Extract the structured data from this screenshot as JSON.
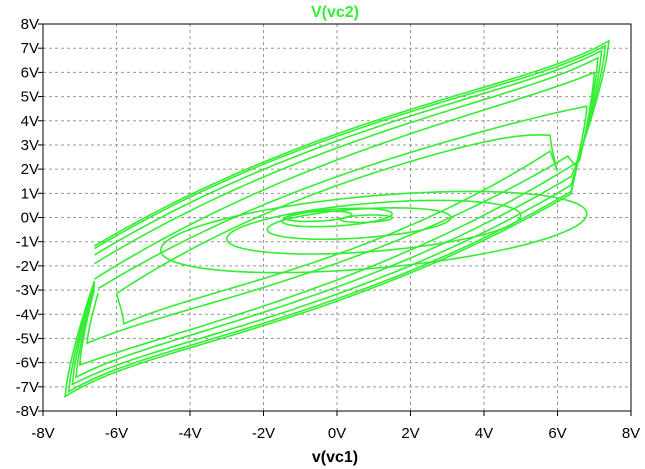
{
  "chart_data": {
    "type": "line",
    "title": "V(vc2)",
    "xlabel": "v(vc1)",
    "ylabel": "",
    "xlim": [
      -8,
      8
    ],
    "ylim": [
      -8,
      8
    ],
    "x_ticks": [
      "-8V",
      "-6V",
      "-4V",
      "-2V",
      "0V",
      "2V",
      "4V",
      "6V",
      "8V"
    ],
    "y_ticks": [
      "8V",
      "7V",
      "6V",
      "5V",
      "4V",
      "3V",
      "2V",
      "1V",
      "0V",
      "-1V",
      "-2V",
      "-3V",
      "-4V",
      "-5V",
      "-6V",
      "-7V",
      "-8V"
    ],
    "grid": true,
    "series": [
      {
        "color": "#33ee33",
        "loops": [
          {
            "amp": 7.4,
            "upper_peak": 7.3,
            "lower_peak": -7.4,
            "knee": 6.6,
            "upper_offset": 3.8,
            "lower_offset": -3.8,
            "slope": 0.4
          },
          {
            "amp": 7.3,
            "upper_peak": 7.1,
            "lower_peak": -7.2,
            "knee": 6.6,
            "upper_offset": 3.7,
            "lower_offset": -3.7,
            "slope": 0.4
          },
          {
            "amp": 7.2,
            "upper_peak": 6.9,
            "lower_peak": -6.9,
            "knee": 6.6,
            "upper_offset": 3.5,
            "lower_offset": -3.5,
            "slope": 0.41
          },
          {
            "amp": 7.1,
            "upper_peak": 6.6,
            "lower_peak": -6.6,
            "knee": 6.6,
            "upper_offset": 3.2,
            "lower_offset": -3.2,
            "slope": 0.42
          },
          {
            "amp": 7.0,
            "upper_peak": 6.0,
            "lower_peak": -6.1,
            "knee": 6.6,
            "upper_offset": 2.7,
            "lower_offset": -2.9,
            "slope": 0.44
          },
          {
            "amp": 6.8,
            "upper_peak": 4.6,
            "lower_peak": -5.2,
            "knee": 6.5,
            "upper_offset": 2.0,
            "lower_offset": -2.2,
            "slope": 0.4
          },
          {
            "amp": 5.8,
            "upper_peak": 3.4,
            "lower_peak": -4.4,
            "knee": 6.0,
            "upper_offset": 1.6,
            "lower_offset": -1.8,
            "slope": 0.4
          }
        ],
        "ellipses": [
          {
            "cx": 1.0,
            "cy": -0.6,
            "rx": 5.8,
            "ry": 1.5,
            "tilt": 0.13
          },
          {
            "cx": 1.0,
            "cy": -0.4,
            "rx": 4.0,
            "ry": 1.0,
            "tilt": 0.12
          },
          {
            "cx": 0.6,
            "cy": -0.25,
            "rx": 2.5,
            "ry": 0.6,
            "tilt": 0.1
          },
          {
            "cx": 0.0,
            "cy": 0.0,
            "rx": 1.5,
            "ry": 0.35,
            "tilt": 0.1
          },
          {
            "cx": -0.5,
            "cy": 0.05,
            "rx": 0.9,
            "ry": 0.2,
            "tilt": 0.08
          },
          {
            "cx": 0.8,
            "cy": -0.05,
            "rx": 0.7,
            "ry": 0.15,
            "tilt": 0.05
          }
        ]
      }
    ]
  }
}
